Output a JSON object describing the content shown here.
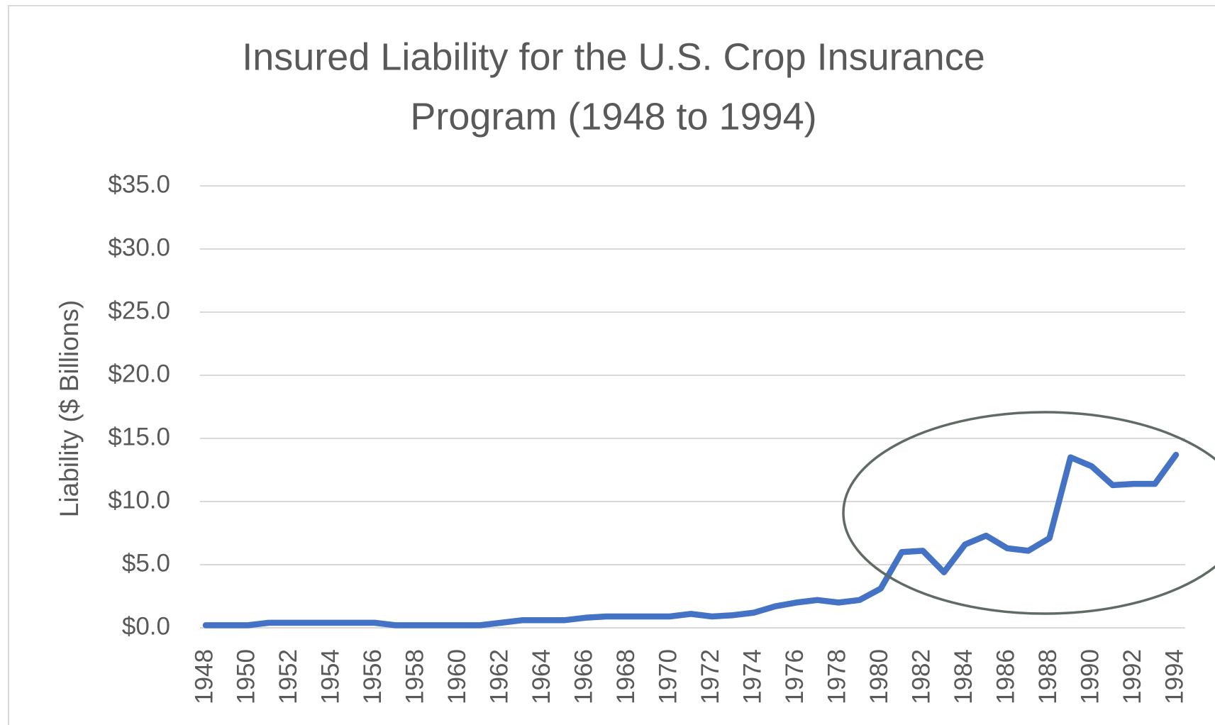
{
  "chart_data": {
    "type": "line",
    "title": [
      "Insured Liability for the U.S. Crop Insurance",
      "Program (1948 to 1994)"
    ],
    "y_label": "Liability ($ Billions)",
    "categories": [
      "1948",
      null,
      "1950",
      null,
      "1952",
      null,
      "1954",
      null,
      "1956",
      null,
      "1958",
      null,
      "1960",
      null,
      "1962",
      null,
      "1964",
      null,
      "1966",
      null,
      "1968",
      null,
      "1970",
      null,
      "1972",
      null,
      "1974",
      null,
      "1976",
      null,
      "1978",
      null,
      "1980",
      null,
      "1982",
      null,
      "1984",
      null,
      "1986",
      null,
      "1988",
      null,
      "1990",
      null,
      "1992",
      null,
      "1994"
    ],
    "series": [
      {
        "name": "Liability",
        "color": "#4472c4",
        "values": [
          0.2,
          0.2,
          0.2,
          0.4,
          0.4,
          0.4,
          0.4,
          0.4,
          0.4,
          0.2,
          0.2,
          0.2,
          0.2,
          0.2,
          0.4,
          0.6,
          0.6,
          0.6,
          0.8,
          0.9,
          0.9,
          0.9,
          0.9,
          1.1,
          0.9,
          1.0,
          1.2,
          1.7,
          2.0,
          2.2,
          2.0,
          2.2,
          3.1,
          6.0,
          6.1,
          4.4,
          6.6,
          7.3,
          6.3,
          6.1,
          7.1,
          13.5,
          12.8,
          11.3,
          11.4,
          11.4,
          13.7
        ]
      }
    ],
    "ylim": [
      0,
      35
    ],
    "yticks": [
      {
        "value": 0,
        "label": "$0.0"
      },
      {
        "value": 5,
        "label": "$5.0"
      },
      {
        "value": 10,
        "label": "$10.0"
      },
      {
        "value": 15,
        "label": "$15.0"
      },
      {
        "value": 20,
        "label": "$20.0"
      },
      {
        "value": 25,
        "label": "$25.0"
      },
      {
        "value": 30,
        "label": "$30.0"
      },
      {
        "value": 35,
        "label": "$35.0"
      }
    ],
    "grid": true
  }
}
